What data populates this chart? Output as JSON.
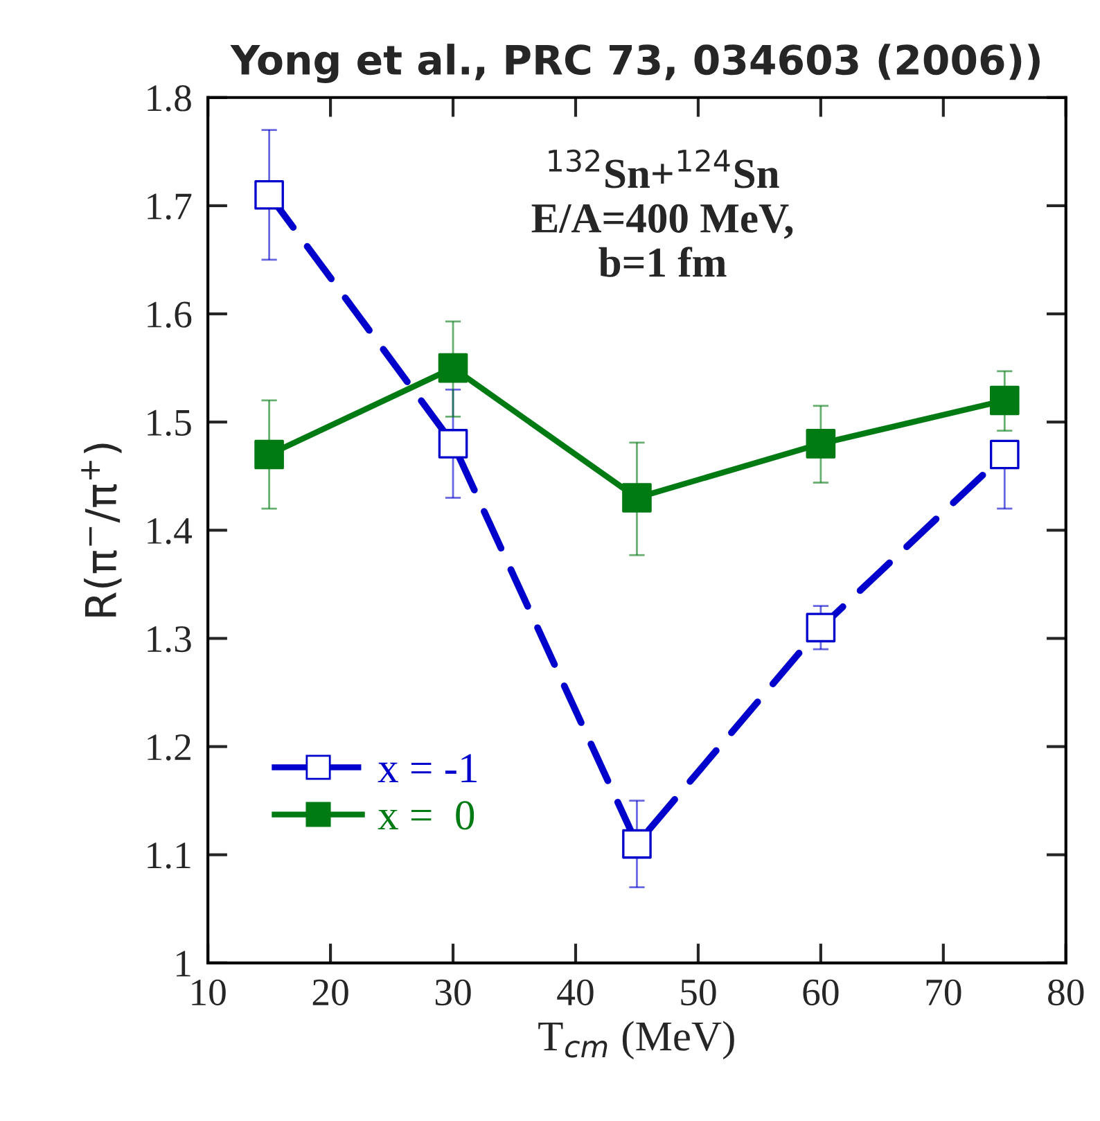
{
  "chart_data": {
    "type": "line",
    "title": "Yong et al., PRC 73, 034603 (2006))",
    "xlabel": "T$_{cm}$ (MeV)",
    "ylabel": "R(π$^{−}$/π$^{+}$)",
    "x": [
      15,
      30,
      45,
      60,
      75
    ],
    "series": [
      {
        "name": "x = -1",
        "color": "#0000cc",
        "line_style": "dashed",
        "marker": "square",
        "values": [
          1.71,
          1.48,
          1.11,
          1.31,
          1.47
        ],
        "errors": [
          [
            1.65,
            1.77
          ],
          [
            1.43,
            1.53
          ],
          [
            1.07,
            1.15
          ],
          [
            1.29,
            1.33
          ],
          [
            1.42,
            1.47
          ]
        ]
      },
      {
        "name": "x =  0",
        "color": "#007a12",
        "line_style": "solid",
        "marker": "square",
        "values": [
          1.47,
          1.55,
          1.43,
          1.48,
          1.52
        ],
        "errors": [
          [
            1.42,
            1.52
          ],
          [
            1.505,
            1.593
          ],
          [
            1.377,
            1.481
          ],
          [
            1.444,
            1.515
          ],
          [
            1.492,
            1.547
          ]
        ]
      }
    ],
    "xlim": [
      10,
      80
    ],
    "xticks": [
      10,
      20,
      30,
      40,
      50,
      60,
      70,
      80
    ],
    "ylim": [
      1,
      1.8
    ],
    "yticks": [
      1,
      1.1,
      1.2,
      1.3,
      1.4,
      1.5,
      1.6,
      1.7,
      1.8
    ],
    "annotations": [
      "$^{132}$Sn+$^{124}$Sn\nE/A=400 MeV,\nb=1 fm"
    ],
    "grid": false,
    "legend": "bottom left"
  }
}
